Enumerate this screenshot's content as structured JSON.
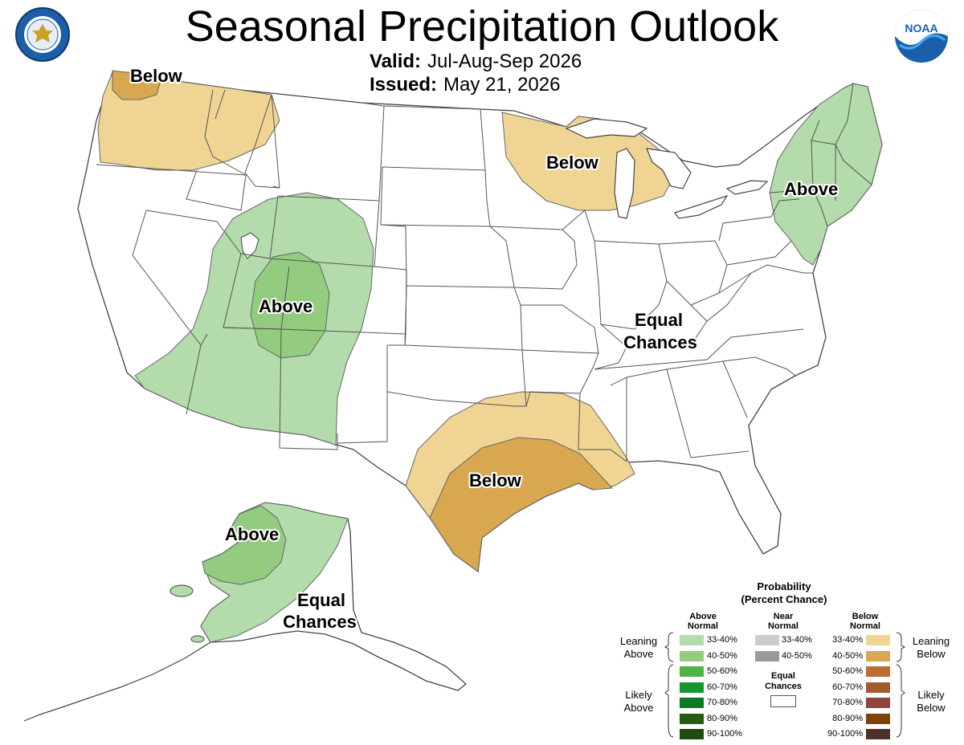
{
  "header": {
    "title": "Seasonal Precipitation Outlook",
    "valid_label": "Valid:",
    "valid_value": "Jul-Aug-Sep 2026",
    "issued_label": "Issued:",
    "issued_value": "May 21, 2026"
  },
  "logos": {
    "left_seal_icon": "department-of-commerce-seal-icon",
    "right_logo_icon": "noaa-logo-icon",
    "noaa_text": "NOAA"
  },
  "map_labels": {
    "northwest": "Below",
    "great_lakes": "Below",
    "northeast": "Above",
    "southwest": "Above",
    "southcentral": "Below",
    "central_line1": "Equal",
    "central_line2": "Chances",
    "alaska_above": "Above",
    "alaska_ec_line1": "Equal",
    "alaska_ec_line2": "Chances"
  },
  "legend": {
    "title_line1": "Probability",
    "title_line2": "(Percent Chance)",
    "above_header_line1": "Above",
    "above_header_line2": "Normal",
    "near_header_line1": "Near",
    "near_header_line2": "Normal",
    "below_header_line1": "Below",
    "below_header_line2": "Normal",
    "equal_line1": "Equal",
    "equal_line2": "Chances",
    "leaning_above_line1": "Leaning",
    "leaning_above_line2": "Above",
    "likely_above_line1": "Likely",
    "likely_above_line2": "Above",
    "leaning_below_line1": "Leaning",
    "leaning_below_line2": "Below",
    "likely_below_line1": "Likely",
    "likely_below_line2": "Below",
    "above": [
      {
        "label": "33-40%",
        "color": "#b3dbab"
      },
      {
        "label": "40-50%",
        "color": "#93cc7e"
      },
      {
        "label": "50-60%",
        "color": "#4fb443"
      },
      {
        "label": "60-70%",
        "color": "#15962f"
      },
      {
        "label": "70-80%",
        "color": "#0b7a21"
      },
      {
        "label": "80-90%",
        "color": "#255e10"
      },
      {
        "label": "90-100%",
        "color": "#1f4a10"
      }
    ],
    "near": [
      {
        "label": "33-40%",
        "color": "#cccccc"
      },
      {
        "label": "40-50%",
        "color": "#9a9a9a"
      }
    ],
    "below": [
      {
        "label": "33-40%",
        "color": "#f0d493"
      },
      {
        "label": "40-50%",
        "color": "#d8a750"
      },
      {
        "label": "50-60%",
        "color": "#bb6d33"
      },
      {
        "label": "60-70%",
        "color": "#a35a2e"
      },
      {
        "label": "70-80%",
        "color": "#90463c"
      },
      {
        "label": "80-90%",
        "color": "#7d4305"
      },
      {
        "label": "90-100%",
        "color": "#4d302c"
      }
    ]
  }
}
